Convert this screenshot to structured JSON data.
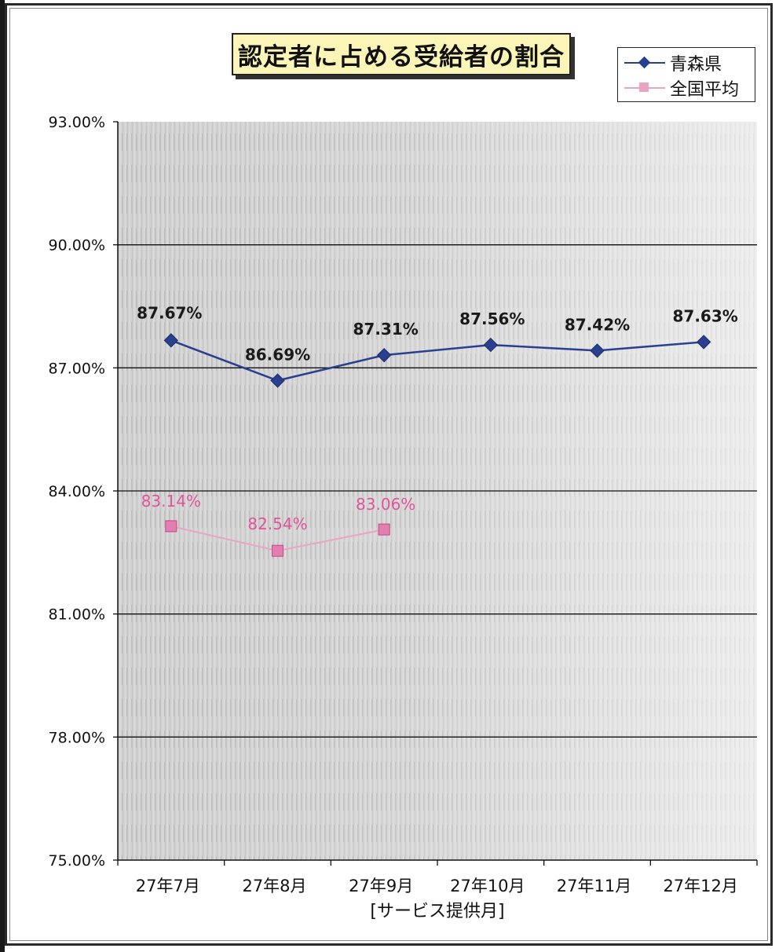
{
  "chart_data": {
    "type": "line",
    "title": "認定者に占める受給者の割合",
    "xlabel": "[サービス提供月]",
    "ylabel": "",
    "categories": [
      "27年7月",
      "27年8月",
      "27年9月",
      "27年10月",
      "27年11月",
      "27年12月"
    ],
    "y_ticks": [
      "75.00%",
      "78.00%",
      "81.00%",
      "84.00%",
      "87.00%",
      "90.00%",
      "93.00%"
    ],
    "ylim": [
      75,
      93
    ],
    "grid": true,
    "legend_position": "top-right",
    "series": [
      {
        "name": "青森県",
        "color": "#2b3f8f",
        "marker": "diamond",
        "values": [
          87.67,
          86.69,
          87.31,
          87.56,
          87.42,
          87.63
        ],
        "labels": [
          "87.67%",
          "86.69%",
          "87.31%",
          "87.56%",
          "87.42%",
          "87.63%"
        ]
      },
      {
        "name": "全国平均",
        "color": "#e0559a",
        "line_color": "#e9a4c4",
        "marker": "square",
        "values": [
          83.14,
          82.54,
          83.06,
          null,
          null,
          null
        ],
        "labels": [
          "83.14%",
          "82.54%",
          "83.06%",
          null,
          null,
          null
        ]
      }
    ]
  }
}
